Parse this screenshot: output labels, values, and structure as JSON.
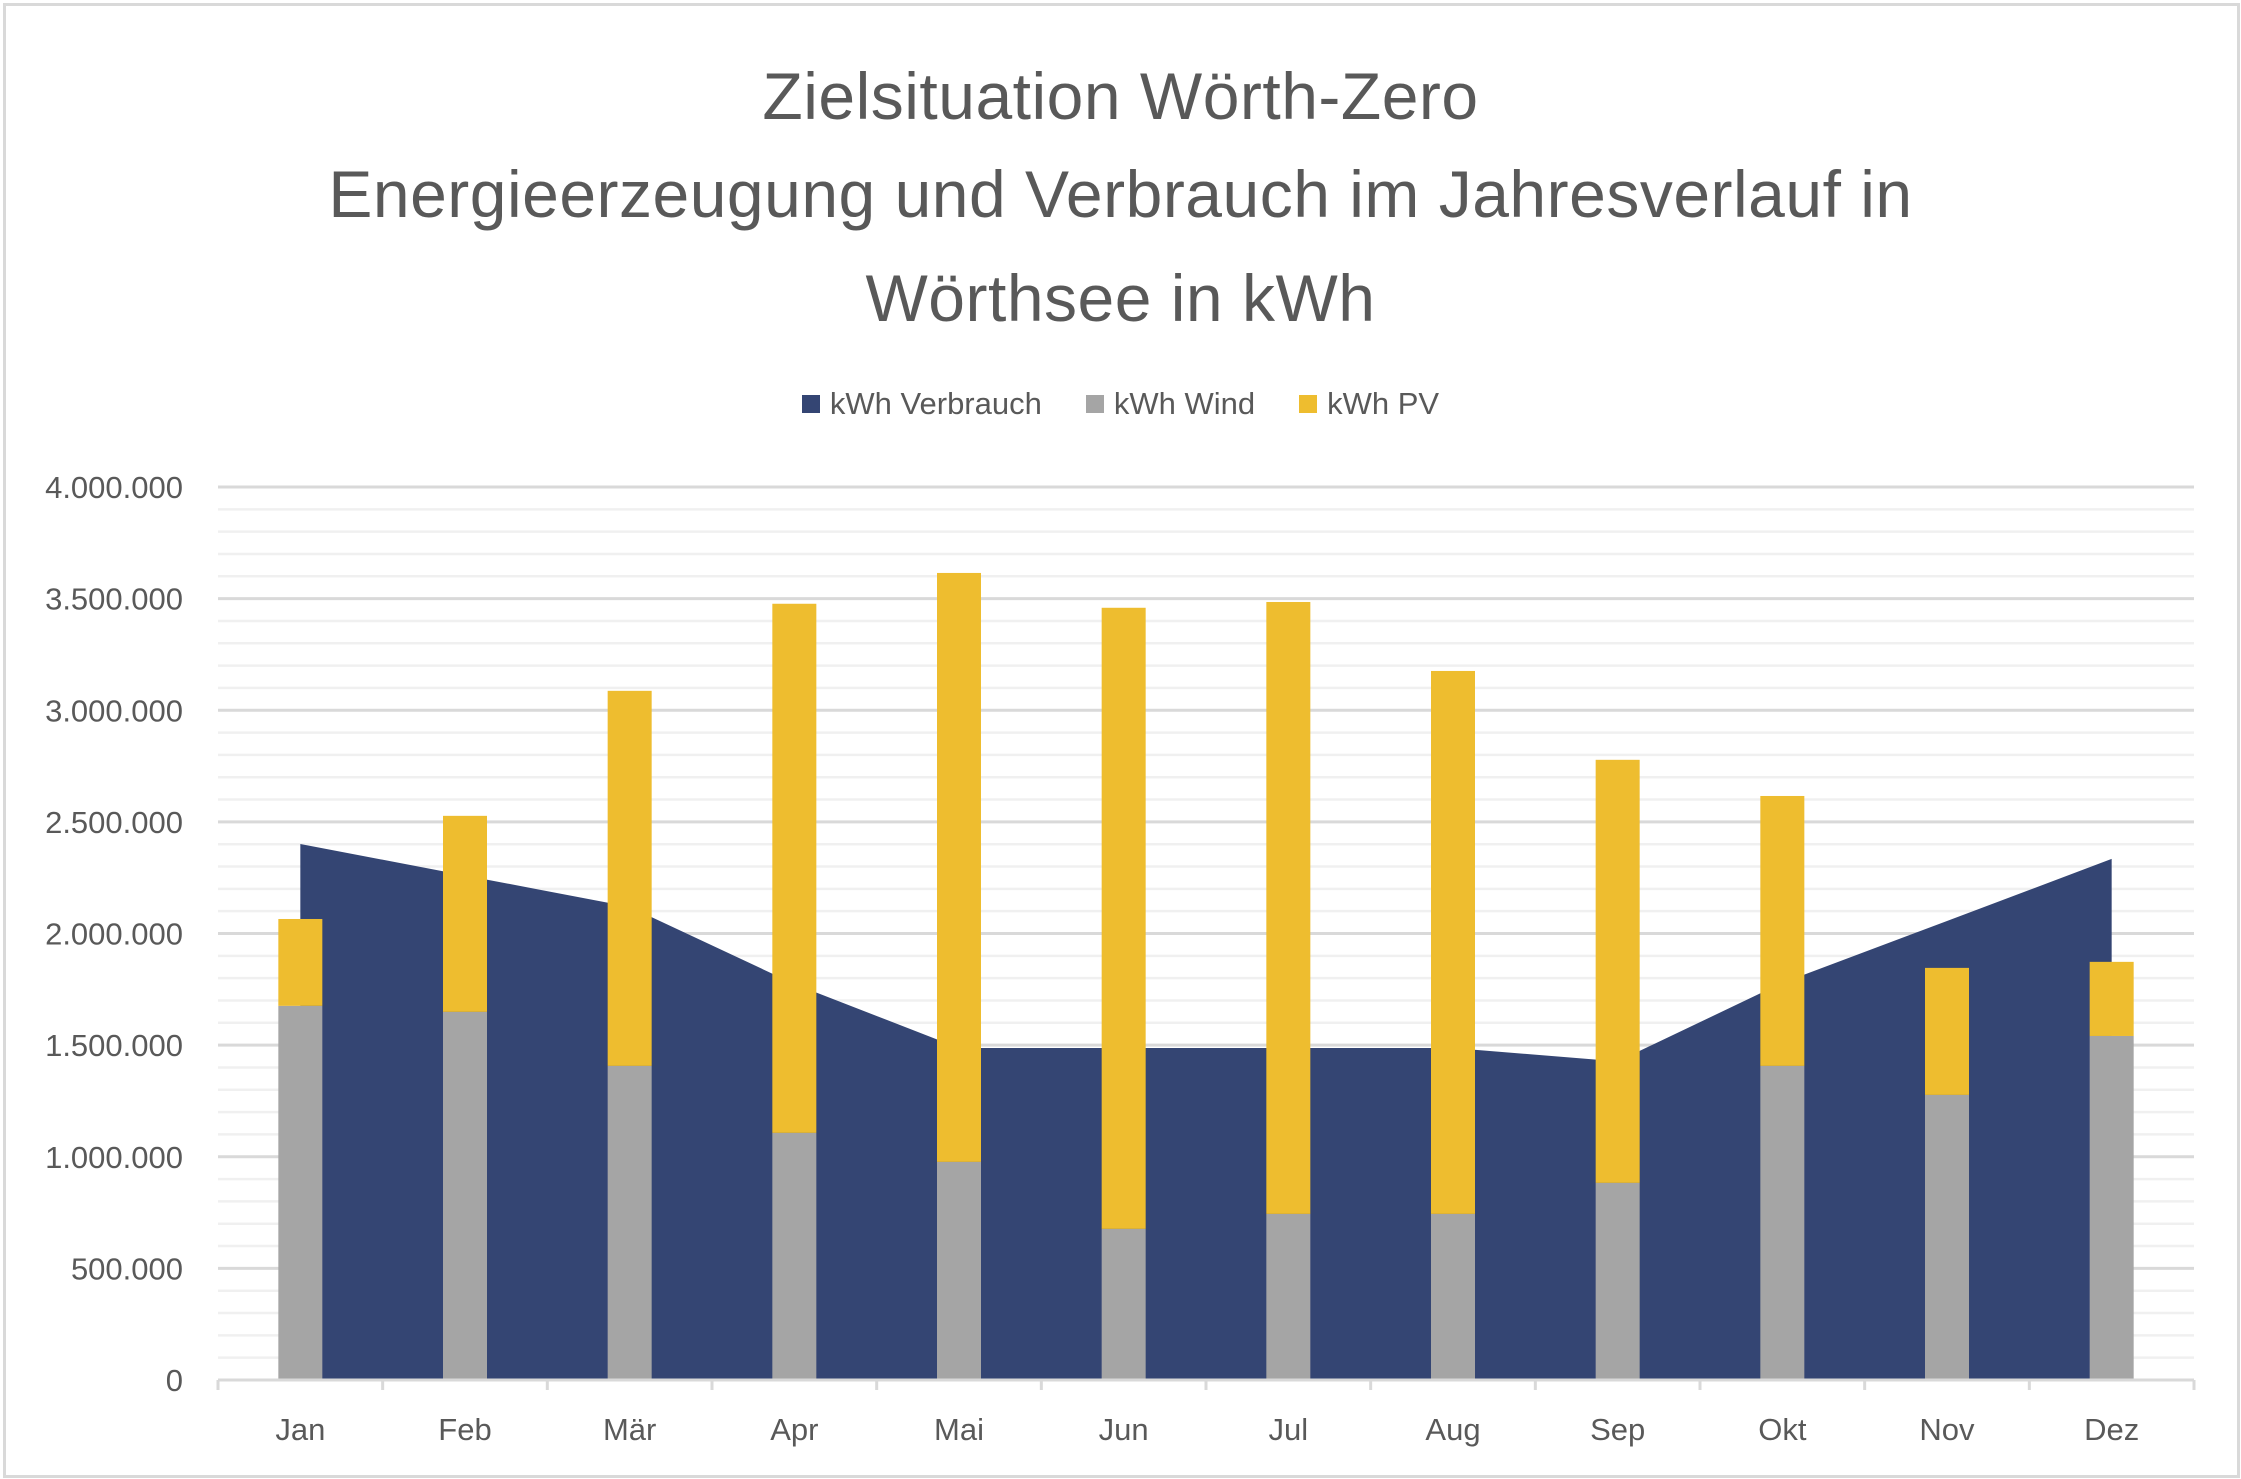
{
  "chart_data": {
    "type": "bar",
    "subtype": "stacked bar with area",
    "title": [
      "Zielsituation Wörth-Zero",
      "Energieerzeugung und Verbrauch im Jahresverlauf in",
      "Wörthsee in kWh"
    ],
    "xlabel": "",
    "ylabel": "",
    "categories": [
      "Jan",
      "Feb",
      "Mär",
      "Apr",
      "Mai",
      "Jun",
      "Jul",
      "Aug",
      "Sep",
      "Okt",
      "Nov",
      "Dez"
    ],
    "ylim": [
      0,
      4000000
    ],
    "yticks": [
      0,
      500000,
      1000000,
      1500000,
      2000000,
      2500000,
      3000000,
      3500000,
      4000000
    ],
    "ytick_labels": [
      "0",
      "500.000",
      "1.000.000",
      "1.500.000",
      "2.000.000",
      "2.500.000",
      "3.000.000",
      "3.500.000",
      "4.000.000"
    ],
    "minor_grid_step": 100000,
    "grid": true,
    "legend_position": "top",
    "series": [
      {
        "name": "kWh Verbrauch",
        "kind": "area",
        "color": "#344573",
        "values": [
          2401000,
          2260000,
          2119000,
          1774000,
          1487000,
          1487000,
          1487000,
          1487000,
          1427000,
          1779000,
          2056000,
          2334000
        ]
      },
      {
        "name": "kWh Wind",
        "kind": "stacked-bar",
        "color": "#a5a5a5",
        "values": [
          1676000,
          1649000,
          1407000,
          1107000,
          977000,
          677000,
          744000,
          744000,
          883000,
          1407000,
          1277000,
          1541000
        ]
      },
      {
        "name": "kWh PV",
        "kind": "stacked-bar",
        "color": "#eebd2f",
        "values": [
          389000,
          878000,
          1680000,
          2370000,
          2638000,
          2782000,
          2741000,
          2432000,
          1895000,
          1209000,
          569000,
          332000
        ]
      }
    ]
  },
  "colors": {
    "text": "#595959",
    "major_grid": "#d9d9d9",
    "minor_grid": "#f0f0f0",
    "axis": "#d9d9d9"
  }
}
